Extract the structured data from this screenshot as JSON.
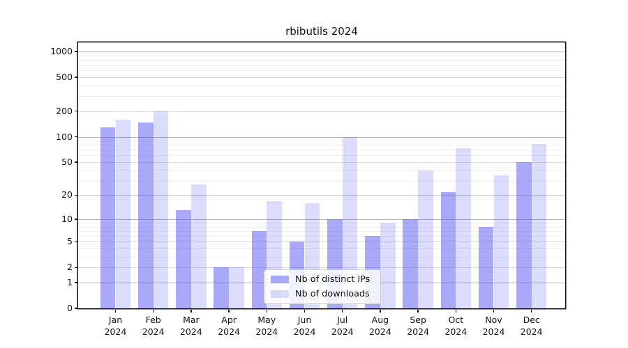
{
  "chart_data": {
    "type": "bar",
    "title": "rbibutils 2024",
    "categories": [
      "Jan",
      "Feb",
      "Mar",
      "Apr",
      "May",
      "Jun",
      "Jul",
      "Aug",
      "Sep",
      "Oct",
      "Nov",
      "Dec"
    ],
    "x_sublabel": "2024",
    "series": [
      {
        "name": "Nb of distinct IPs",
        "color": "rgba(80,80,240,0.49)",
        "values": [
          130,
          148,
          13,
          2,
          7,
          5,
          10,
          6,
          10,
          22,
          8,
          50
        ]
      },
      {
        "name": "Nb of downloads",
        "color": "rgba(80,80,240,0.20)",
        "values": [
          158,
          200,
          27,
          2,
          17,
          16,
          100,
          9,
          40,
          73,
          35,
          82
        ]
      }
    ],
    "yticks": [
      0,
      1,
      2,
      5,
      10,
      20,
      50,
      100,
      200,
      500,
      1000
    ],
    "ylim": [
      0,
      1275
    ],
    "yscale": "log1p",
    "grid": true,
    "legend": {
      "position": "lower center"
    }
  }
}
